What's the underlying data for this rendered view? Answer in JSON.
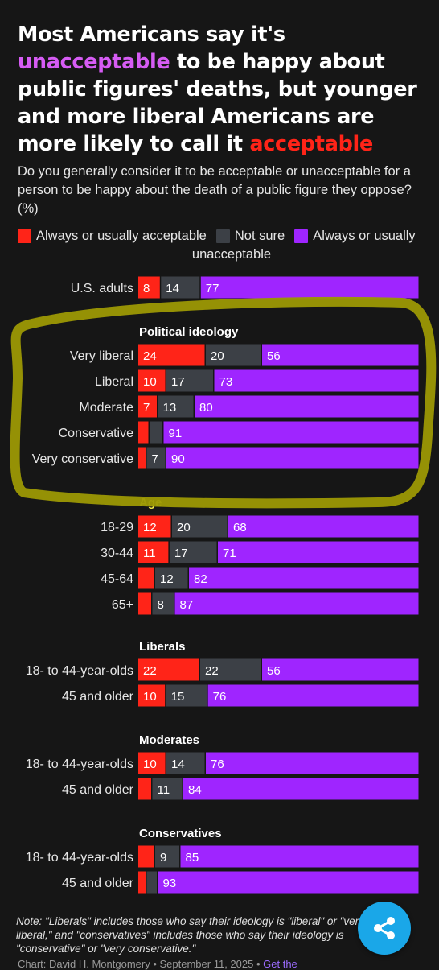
{
  "title": {
    "part1": "Most Americans say it's",
    "highlight1": "unacceptable",
    "part2": "to be happy about public figures' deaths, but younger and more liberal Americans are more likely to call it",
    "highlight2": "acceptable"
  },
  "subtitle": "Do you generally consider it to be acceptable or unacceptable for a person to be happy about the death of a public figure they oppose? (%)",
  "colors": {
    "acceptable": "#ff2418",
    "not_sure": "#3c4046",
    "unacceptable": "#9f25ff",
    "highlight_purple": "#d65cf4",
    "annotation_circle": "#9c9804"
  },
  "legend": [
    {
      "label": "Always or usually acceptable",
      "color": "#ff2418"
    },
    {
      "label": "Not sure",
      "color": "#3c4046"
    },
    {
      "label": "Always or usually unacceptable",
      "color": "#9f25ff"
    }
  ],
  "chart_data": {
    "type": "bar",
    "stacked": true,
    "orientation": "horizontal",
    "series": [
      {
        "name": "Always or usually acceptable"
      },
      {
        "name": "Not sure"
      },
      {
        "name": "Always or usually unacceptable"
      }
    ],
    "groups": [
      {
        "heading": "",
        "rows": [
          {
            "label": "U.S. adults",
            "values": [
              8,
              14,
              77
            ],
            "labels": [
              "8",
              "14",
              "77"
            ]
          }
        ]
      },
      {
        "heading": "Political ideology",
        "rows": [
          {
            "label": "Very liberal",
            "values": [
              24,
              20,
              56
            ],
            "labels": [
              "24",
              "20",
              "56"
            ]
          },
          {
            "label": "Liberal",
            "values": [
              10,
              17,
              73
            ],
            "labels": [
              "10",
              "17",
              "73"
            ]
          },
          {
            "label": "Moderate",
            "values": [
              7,
              13,
              80
            ],
            "labels": [
              "7",
              "13",
              "80"
            ]
          },
          {
            "label": "Conservative",
            "values": [
              4,
              5,
              91
            ],
            "labels": [
              "",
              "",
              "91"
            ]
          },
          {
            "label": "Very conservative",
            "values": [
              3,
              7,
              90
            ],
            "labels": [
              "",
              "7",
              "90"
            ]
          }
        ]
      },
      {
        "heading": "Age",
        "rows": [
          {
            "label": "18-29",
            "values": [
              12,
              20,
              68
            ],
            "labels": [
              "12",
              "20",
              "68"
            ]
          },
          {
            "label": "30-44",
            "values": [
              11,
              17,
              71
            ],
            "labels": [
              "11",
              "17",
              "71"
            ]
          },
          {
            "label": "45-64",
            "values": [
              6,
              12,
              82
            ],
            "labels": [
              "",
              "12",
              "82"
            ]
          },
          {
            "label": "65+",
            "values": [
              5,
              8,
              87
            ],
            "labels": [
              "",
              "8",
              "87"
            ]
          }
        ]
      },
      {
        "heading": "Liberals",
        "rows": [
          {
            "label": "18- to 44-year-olds",
            "values": [
              22,
              22,
              56
            ],
            "labels": [
              "22",
              "22",
              "56"
            ]
          },
          {
            "label": "45 and older",
            "values": [
              10,
              15,
              76
            ],
            "labels": [
              "10",
              "15",
              "76"
            ]
          }
        ]
      },
      {
        "heading": "Moderates",
        "rows": [
          {
            "label": "18- to 44-year-olds",
            "values": [
              10,
              14,
              76
            ],
            "labels": [
              "10",
              "14",
              "76"
            ]
          },
          {
            "label": "45 and older",
            "values": [
              5,
              11,
              84
            ],
            "labels": [
              "",
              "11",
              "84"
            ]
          }
        ]
      },
      {
        "heading": "Conservatives",
        "rows": [
          {
            "label": "18- to 44-year-olds",
            "values": [
              6,
              9,
              85
            ],
            "labels": [
              "",
              "9",
              "85"
            ]
          },
          {
            "label": "45 and older",
            "values": [
              3,
              4,
              93
            ],
            "labels": [
              "",
              "",
              "93"
            ]
          }
        ]
      }
    ]
  },
  "note": "Note: \"Liberals\" includes those who say their ideology is \"liberal\" or \"very liberal,\" and \"conservatives\" includes those who say their ideology is \"conservative\" or \"very conservative.\"",
  "footer": {
    "credit": "Chart: David H. Montgomery • September 11, 2025 •",
    "link": "Get the"
  },
  "share": {
    "icon": "share-icon"
  }
}
